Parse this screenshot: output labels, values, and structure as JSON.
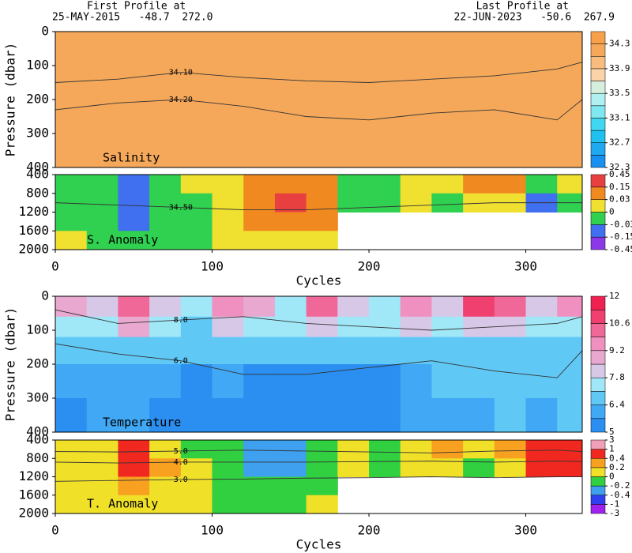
{
  "header": {
    "first_title": "First Profile at",
    "first_line": "25-MAY-2015   -48.7  272.0",
    "last_title": "Last Profile at",
    "last_line": "22-JUN-2023   -50.6  267.9"
  },
  "chart_data": [
    {
      "type": "heatmap",
      "title": "Salinity",
      "ylabel": "Pressure (dbar)",
      "xlim": [
        0,
        336
      ],
      "ylim": [
        400,
        0
      ],
      "yticks": [
        0,
        100,
        200,
        300,
        400
      ],
      "x_edges": [
        0,
        336
      ],
      "y_edges": [
        0,
        150,
        250,
        400
      ],
      "z": [
        [
          34.18
        ],
        [
          34.22
        ],
        [
          34.26
        ]
      ],
      "colorbar": {
        "bounds": [
          32.3,
          32.5,
          32.7,
          32.9,
          33.1,
          33.3,
          33.5,
          33.7,
          33.9,
          34.1,
          34.3,
          34.5
        ],
        "colors": [
          "#1890f0",
          "#20a8f0",
          "#20c0f0",
          "#40d8f0",
          "#7fe8f0",
          "#b0f0f0",
          "#d6eedd",
          "#fad3a8",
          "#f8bd7e",
          "#f5a85a",
          "#f7a04a"
        ],
        "ticks": [
          32.3,
          32.7,
          33.1,
          33.5,
          33.9,
          34.3
        ]
      },
      "contours": [
        {
          "level": {
            "value": 34.1,
            "label": "34.10"
          },
          "x": [
            0,
            40,
            80,
            120,
            160,
            200,
            240,
            280,
            320,
            336
          ],
          "y": [
            150,
            140,
            120,
            135,
            145,
            150,
            140,
            130,
            110,
            90
          ]
        },
        {
          "level": {
            "value": 34.2,
            "label": "34.20"
          },
          "x": [
            0,
            40,
            80,
            120,
            160,
            200,
            240,
            280,
            320,
            336
          ],
          "y": [
            230,
            210,
            200,
            220,
            250,
            260,
            240,
            230,
            260,
            200
          ]
        }
      ]
    },
    {
      "type": "heatmap",
      "title": "S. Anomaly",
      "xlabel": "Cycles",
      "xlim": [
        0,
        336
      ],
      "ylim": [
        2000,
        400
      ],
      "xticks": [
        0,
        100,
        200,
        300
      ],
      "yticks": [
        400,
        800,
        1200,
        1600,
        2000
      ],
      "x_edges": [
        0,
        20,
        40,
        60,
        80,
        100,
        120,
        140,
        160,
        180,
        200,
        220,
        240,
        260,
        280,
        300,
        320,
        336
      ],
      "y_edges": [
        400,
        800,
        1200,
        1600,
        2000
      ],
      "z": [
        [
          -0.01,
          -0.02,
          -0.05,
          -0.01,
          0.01,
          0.02,
          0.08,
          0.1,
          0.04,
          -0.01,
          -0.01,
          0.01,
          0.02,
          0.05,
          0.06,
          -0.02,
          0.02
        ],
        [
          -0.02,
          -0.02,
          -0.08,
          -0.02,
          -0.01,
          0.01,
          0.1,
          0.18,
          0.06,
          -0.01,
          -0.01,
          0.01,
          -0.01,
          0.01,
          0.02,
          -0.05,
          -0.02
        ],
        [
          -0.01,
          -0.02,
          -0.05,
          -0.02,
          -0.01,
          0.01,
          0.06,
          0.1,
          0.04,
          null,
          null,
          null,
          null,
          null,
          null,
          null,
          null
        ],
        [
          0.01,
          -0.01,
          -0.02,
          -0.01,
          -0.01,
          0.01,
          0.02,
          0.02,
          0.01,
          null,
          null,
          null,
          null,
          null,
          null,
          null,
          null
        ]
      ],
      "colorbar": {
        "bounds": [
          -0.45,
          -0.15,
          -0.03,
          0,
          0.03,
          0.15,
          0.45
        ],
        "colors": [
          "#8a38e8",
          "#4070f0",
          "#30d050",
          "#f0e030",
          "#f08a20",
          "#e84040"
        ],
        "ticks": [
          -0.45,
          -0.15,
          -0.03,
          0,
          0.03,
          0.15,
          0.45
        ]
      },
      "contours": [
        {
          "level": {
            "value": 34.5,
            "label": "34.50"
          },
          "x": [
            0,
            40,
            80,
            120,
            160,
            200,
            240,
            280,
            320,
            336
          ],
          "y": [
            1000,
            1050,
            1100,
            1150,
            1150,
            1100,
            1050,
            1000,
            1000,
            1000
          ]
        }
      ]
    },
    {
      "type": "heatmap",
      "title": "Temperature",
      "ylabel": "Pressure (dbar)",
      "xlim": [
        0,
        336
      ],
      "ylim": [
        400,
        0
      ],
      "yticks": [
        0,
        100,
        200,
        300,
        400
      ],
      "x_edges": [
        0,
        20,
        40,
        60,
        80,
        100,
        120,
        140,
        160,
        180,
        200,
        220,
        240,
        260,
        280,
        300,
        320,
        336
      ],
      "y_edges": [
        0,
        60,
        120,
        200,
        300,
        400
      ],
      "z": [
        [
          8.8,
          8.0,
          10.5,
          8.2,
          7.5,
          9.5,
          8.5,
          7.6,
          10.2,
          8.2,
          7.6,
          9.8,
          8.2,
          10.8,
          10.2,
          7.8,
          9.5
        ],
        [
          7.5,
          7.2,
          8.6,
          7.4,
          7.0,
          8.0,
          7.4,
          7.2,
          8.2,
          7.3,
          7.2,
          8.0,
          7.4,
          8.4,
          8.2,
          7.2,
          7.6
        ],
        [
          6.8,
          6.7,
          6.9,
          6.7,
          6.6,
          6.8,
          6.7,
          6.6,
          6.8,
          6.7,
          6.6,
          6.9,
          6.8,
          7.0,
          7.0,
          6.8,
          6.9
        ],
        [
          6.0,
          6.2,
          6.3,
          6.2,
          5.6,
          5.8,
          5.6,
          5.5,
          5.5,
          5.6,
          5.6,
          6.3,
          6.5,
          6.5,
          6.5,
          6.4,
          6.5
        ],
        [
          5.6,
          6.0,
          6.2,
          5.6,
          5.4,
          5.5,
          5.4,
          5.3,
          5.3,
          5.4,
          5.5,
          6.2,
          6.3,
          6.3,
          6.4,
          6.3,
          6.4
        ]
      ],
      "colorbar": {
        "bounds": [
          5,
          5.7,
          6.4,
          7.1,
          7.8,
          8.5,
          9.2,
          9.9,
          10.6,
          11.3,
          12
        ],
        "colors": [
          "#2a8ff0",
          "#40a8f5",
          "#60c8f5",
          "#a0e8f8",
          "#d8c8e8",
          "#e8a8d0",
          "#f090c0",
          "#f06898",
          "#f04070",
          "#f02050"
        ],
        "ticks": [
          5,
          6.4,
          7.8,
          9.2,
          10.6,
          12
        ]
      },
      "contours": [
        {
          "level": {
            "value": 8,
            "label": "8.0"
          },
          "x": [
            0,
            40,
            80,
            120,
            160,
            200,
            240,
            280,
            320,
            336
          ],
          "y": [
            40,
            80,
            70,
            60,
            80,
            90,
            100,
            90,
            80,
            60
          ]
        },
        {
          "level": {
            "value": 6,
            "label": "6.0"
          },
          "x": [
            0,
            40,
            80,
            120,
            160,
            200,
            240,
            280,
            320,
            336
          ],
          "y": [
            140,
            170,
            190,
            230,
            230,
            210,
            190,
            220,
            240,
            160
          ]
        }
      ]
    },
    {
      "type": "heatmap",
      "title": "T. Anomaly",
      "xlabel": "Cycles",
      "xlim": [
        0,
        336
      ],
      "ylim": [
        2000,
        400
      ],
      "xticks": [
        0,
        100,
        200,
        300
      ],
      "yticks": [
        400,
        800,
        1200,
        1600,
        2000
      ],
      "x_edges": [
        0,
        20,
        40,
        60,
        80,
        100,
        120,
        140,
        160,
        180,
        200,
        220,
        240,
        260,
        280,
        300,
        320,
        336
      ],
      "y_edges": [
        400,
        800,
        1200,
        1600,
        2000
      ],
      "z": [
        [
          0.1,
          0.1,
          0.5,
          0.1,
          -0.1,
          -0.1,
          -0.3,
          -0.3,
          -0.1,
          0.1,
          -0.1,
          0.1,
          0.3,
          0.1,
          0.2,
          0.5,
          0.4
        ],
        [
          0.1,
          0.1,
          0.6,
          0.2,
          0.1,
          -0.1,
          -0.3,
          -0.3,
          -0.1,
          0.1,
          -0.1,
          0.1,
          0.1,
          -0.1,
          0.1,
          0.5,
          0.5
        ],
        [
          0.1,
          0.1,
          0.2,
          0.1,
          0.1,
          -0.1,
          -0.1,
          -0.1,
          -0.1,
          null,
          null,
          null,
          null,
          null,
          null,
          null,
          null
        ],
        [
          0.1,
          0.1,
          0.1,
          0.1,
          0.1,
          -0.1,
          -0.1,
          -0.1,
          0.1,
          null,
          null,
          null,
          null,
          null,
          null,
          null,
          null
        ]
      ],
      "colorbar": {
        "bounds": [
          -3,
          -1,
          -0.4,
          -0.2,
          0,
          0.2,
          0.4,
          1,
          3
        ],
        "colors": [
          "#a020f0",
          "#3040f0",
          "#40a0f0",
          "#30d040",
          "#f0e028",
          "#f8a020",
          "#f02820",
          "#f0a0b8"
        ],
        "ticks": [
          -3,
          -1,
          -0.4,
          -0.2,
          0,
          0.2,
          0.4,
          1,
          3
        ]
      },
      "contours": [
        {
          "level": {
            "value": 5,
            "label": "5.0"
          },
          "x": [
            0,
            40,
            80,
            120,
            160,
            200,
            240,
            280,
            320,
            336
          ],
          "y": [
            650,
            660,
            640,
            620,
            640,
            660,
            680,
            640,
            620,
            650
          ]
        },
        {
          "level": {
            "value": 4,
            "label": "4.0"
          },
          "x": [
            0,
            40,
            80,
            120,
            160,
            200,
            240,
            280,
            320,
            336
          ],
          "y": [
            880,
            900,
            880,
            880,
            880,
            870,
            860,
            880,
            860,
            870
          ]
        },
        {
          "level": {
            "value": 3,
            "label": "3.0"
          },
          "x": [
            0,
            40,
            80,
            120,
            160,
            200,
            240,
            280,
            320,
            336
          ],
          "y": [
            1300,
            1280,
            1260,
            1250,
            1230,
            1220,
            1200,
            1220,
            1200,
            1200
          ]
        }
      ]
    }
  ]
}
